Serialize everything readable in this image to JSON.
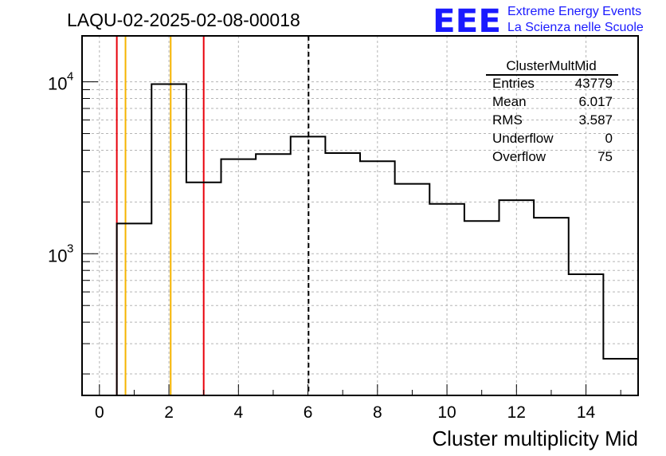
{
  "chart_data": {
    "type": "histogram",
    "title": "LAQU-02-2025-02-08-00018",
    "xlabel": "Cluster multiplicity Mid",
    "ylabel": "",
    "xlim": [
      -0.5,
      15.5
    ],
    "ylim": [
      150,
      18500
    ],
    "yscale": "log",
    "grid": true,
    "x_ticks": [
      0,
      2,
      4,
      6,
      8,
      10,
      12,
      14
    ],
    "y_ticks": [
      {
        "value": 1000,
        "base": "10",
        "exp": "3"
      },
      {
        "value": 10000,
        "base": "10",
        "exp": "4"
      }
    ],
    "bins": [
      {
        "x": 1,
        "y": 1500
      },
      {
        "x": 2,
        "y": 9700
      },
      {
        "x": 3,
        "y": 2600
      },
      {
        "x": 4,
        "y": 3550
      },
      {
        "x": 5,
        "y": 3800
      },
      {
        "x": 6,
        "y": 4800
      },
      {
        "x": 7,
        "y": 3850
      },
      {
        "x": 8,
        "y": 3450
      },
      {
        "x": 9,
        "y": 2550
      },
      {
        "x": 10,
        "y": 1950
      },
      {
        "x": 11,
        "y": 1550
      },
      {
        "x": 12,
        "y": 2050
      },
      {
        "x": 13,
        "y": 1620
      },
      {
        "x": 14,
        "y": 760
      },
      {
        "x": 15,
        "y": 245
      }
    ],
    "vertical_lines": [
      {
        "x": 0.5,
        "color": "#e8000b",
        "style": "solid"
      },
      {
        "x": 0.75,
        "color": "#f5b400",
        "style": "solid"
      },
      {
        "x": 2.05,
        "color": "#f5b400",
        "style": "solid"
      },
      {
        "x": 3.0,
        "color": "#e8000b",
        "style": "solid"
      },
      {
        "x": 6.017,
        "color": "#000000",
        "style": "dashed"
      }
    ],
    "stats": {
      "name": "ClusterMultMid",
      "rows": [
        {
          "label": "Entries",
          "value": "43779"
        },
        {
          "label": "Mean",
          "value": "6.017"
        },
        {
          "label": "RMS",
          "value": "3.587"
        },
        {
          "label": "Underflow",
          "value": "0"
        },
        {
          "label": "Overflow",
          "value": "75"
        }
      ]
    }
  },
  "logo": {
    "mark": "EEE",
    "line1": "Extreme Energy Events",
    "line2": "La Scienza nelle Scuole"
  }
}
